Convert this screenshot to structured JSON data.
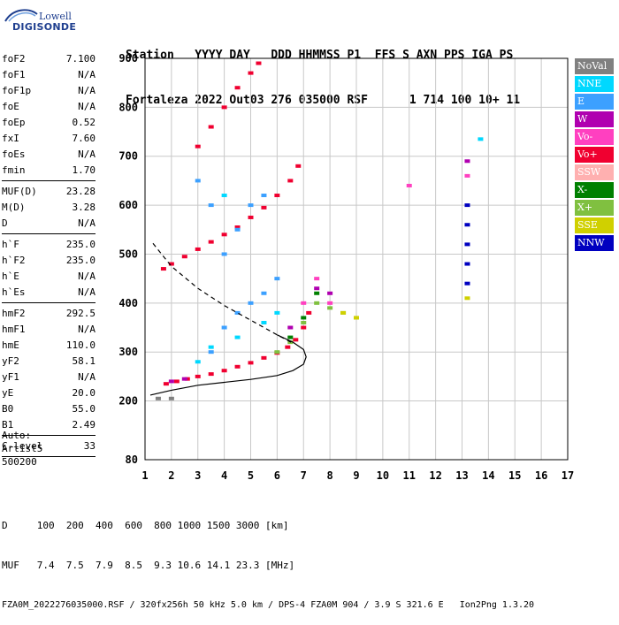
{
  "logo": {
    "brand": "Lowell",
    "product": "DIGISONDE"
  },
  "header": {
    "line1": "Station   YYYY DAY   DDD HHMMSS P1  FFS S AXN PPS IGA PS",
    "line2": "Fortaleza 2022 Out03 276 035000 RSF      1 714 100 10+ 11"
  },
  "params": {
    "group1": [
      {
        "key": "foF2",
        "value": "7.100"
      },
      {
        "key": "foF1",
        "value": "N/A"
      },
      {
        "key": "foF1p",
        "value": "N/A"
      },
      {
        "key": "foE",
        "value": "N/A"
      },
      {
        "key": "foEp",
        "value": "0.52"
      },
      {
        "key": "fxI",
        "value": "7.60"
      },
      {
        "key": "foEs",
        "value": "N/A"
      },
      {
        "key": "fmin",
        "value": "1.70"
      }
    ],
    "group2": [
      {
        "key": "MUF(D)",
        "value": "23.28"
      },
      {
        "key": "M(D)",
        "value": "3.28"
      },
      {
        "key": "D",
        "value": "N/A"
      }
    ],
    "group3": [
      {
        "key": "h`F",
        "value": "235.0"
      },
      {
        "key": "h`F2",
        "value": "235.0"
      },
      {
        "key": "h`E",
        "value": "N/A"
      },
      {
        "key": "h`Es",
        "value": "N/A"
      }
    ],
    "group4": [
      {
        "key": "hmF2",
        "value": "292.5"
      },
      {
        "key": "hmF1",
        "value": "N/A"
      },
      {
        "key": "hmE",
        "value": "110.0"
      },
      {
        "key": "yF2",
        "value": "58.1"
      },
      {
        "key": "yF1",
        "value": "N/A"
      },
      {
        "key": "yE",
        "value": "20.0"
      },
      {
        "key": "B0",
        "value": "55.0"
      },
      {
        "key": "B1",
        "value": "2.49"
      }
    ],
    "group5": [
      {
        "key": "C-level",
        "value": "33"
      }
    ]
  },
  "auto": {
    "line1": "Auto:",
    "line2": "Artist5",
    "line3": "500200"
  },
  "legend": [
    {
      "label": "NoVal",
      "color": "#808080"
    },
    {
      "label": "NNE",
      "color": "#00d8ff"
    },
    {
      "label": "E",
      "color": "#3ca0ff"
    },
    {
      "label": "W",
      "color": "#b000b0"
    },
    {
      "label": "Vo-",
      "color": "#ff40c0"
    },
    {
      "label": "Vo+",
      "color": "#f00030"
    },
    {
      "label": "SSW",
      "color": "#ffb0b0"
    },
    {
      "label": "X-",
      "color": "#008000"
    },
    {
      "label": "X+",
      "color": "#80c040"
    },
    {
      "label": "SSE",
      "color": "#d0d000"
    },
    {
      "label": "NNW",
      "color": "#0000c0"
    }
  ],
  "footer": {
    "line1": "D     100  200  400  600  800 1000 1500 3000 [km]",
    "line2": "MUF   7.4  7.5  7.9  8.5  9.3 10.6 14.1 23.3 [MHz]",
    "line3": "FZA0M_2022276035000.RSF / 320fx256h 50 kHz 5.0 km / DPS-4 FZA0M 904 / 3.9 S 321.6 E   Ion2Png 1.3.20"
  },
  "chart_data": {
    "type": "scatter",
    "title": "",
    "xlabel": "",
    "ylabel": "",
    "xlim": [
      1,
      17
    ],
    "ylim": [
      80,
      900
    ],
    "xticks": [
      1,
      2,
      3,
      4,
      5,
      6,
      7,
      8,
      9,
      10,
      11,
      12,
      13,
      14,
      15,
      16,
      17
    ],
    "yticks": [
      80,
      200,
      300,
      400,
      500,
      600,
      700,
      800,
      900
    ],
    "series": [
      {
        "name": "Vo+",
        "color": "#f00030",
        "points": [
          [
            1.8,
            235
          ],
          [
            2.2,
            240
          ],
          [
            2.6,
            245
          ],
          [
            3.0,
            250
          ],
          [
            3.5,
            255
          ],
          [
            4.0,
            262
          ],
          [
            4.5,
            270
          ],
          [
            5.0,
            278
          ],
          [
            5.5,
            288
          ],
          [
            6.0,
            298
          ],
          [
            6.4,
            310
          ],
          [
            6.7,
            325
          ],
          [
            7.0,
            350
          ],
          [
            7.2,
            380
          ]
        ]
      },
      {
        "name": "Vo+",
        "color": "#f00030",
        "points": [
          [
            1.7,
            470
          ],
          [
            2.0,
            480
          ],
          [
            2.5,
            495
          ],
          [
            3.0,
            510
          ],
          [
            3.5,
            525
          ],
          [
            4.0,
            540
          ],
          [
            4.5,
            555
          ],
          [
            5.0,
            575
          ],
          [
            5.5,
            595
          ],
          [
            6.0,
            620
          ],
          [
            6.5,
            650
          ],
          [
            6.8,
            680
          ]
        ]
      },
      {
        "name": "Vo+",
        "color": "#f00030",
        "points": [
          [
            3.0,
            720
          ],
          [
            3.5,
            760
          ],
          [
            4.0,
            800
          ],
          [
            4.5,
            840
          ],
          [
            5.0,
            870
          ],
          [
            5.3,
            890
          ]
        ]
      },
      {
        "name": "X+",
        "color": "#80c040",
        "points": [
          [
            6.0,
            300
          ],
          [
            6.5,
            320
          ],
          [
            7.0,
            360
          ],
          [
            7.5,
            400
          ],
          [
            8.0,
            390
          ],
          [
            8.5,
            380
          ],
          [
            9.0,
            370
          ]
        ]
      },
      {
        "name": "E",
        "color": "#3ca0ff",
        "points": [
          [
            3.5,
            300
          ],
          [
            4.0,
            350
          ],
          [
            4.5,
            380
          ],
          [
            5.0,
            400
          ],
          [
            5.5,
            420
          ],
          [
            6.0,
            450
          ],
          [
            4.0,
            500
          ],
          [
            4.5,
            550
          ],
          [
            5.0,
            600
          ],
          [
            5.5,
            620
          ],
          [
            3.0,
            650
          ],
          [
            3.5,
            600
          ]
        ]
      },
      {
        "name": "NNE",
        "color": "#00d8ff",
        "points": [
          [
            3.0,
            280
          ],
          [
            3.5,
            310
          ],
          [
            4.5,
            330
          ],
          [
            5.5,
            360
          ],
          [
            6.0,
            380
          ],
          [
            4.0,
            620
          ],
          [
            13.7,
            735
          ]
        ]
      },
      {
        "name": "NNW",
        "color": "#0000c0",
        "points": [
          [
            13.2,
            600
          ],
          [
            13.2,
            560
          ],
          [
            13.2,
            520
          ],
          [
            13.2,
            480
          ],
          [
            13.2,
            440
          ]
        ]
      },
      {
        "name": "W",
        "color": "#b000b0",
        "points": [
          [
            2.0,
            240
          ],
          [
            2.5,
            245
          ],
          [
            6.5,
            350
          ],
          [
            7.5,
            430
          ],
          [
            8.0,
            420
          ],
          [
            13.2,
            690
          ]
        ]
      },
      {
        "name": "Vo-",
        "color": "#ff40c0",
        "points": [
          [
            7.0,
            400
          ],
          [
            7.5,
            450
          ],
          [
            8.0,
            400
          ],
          [
            11.0,
            640
          ],
          [
            13.2,
            660
          ]
        ]
      },
      {
        "name": "X-",
        "color": "#008000",
        "points": [
          [
            6.5,
            330
          ],
          [
            7.0,
            370
          ],
          [
            7.5,
            420
          ]
        ]
      },
      {
        "name": "SSE",
        "color": "#d0d000",
        "points": [
          [
            8.5,
            380
          ],
          [
            9.0,
            370
          ],
          [
            13.2,
            410
          ]
        ]
      },
      {
        "name": "NoVal",
        "color": "#808080",
        "points": [
          [
            1.5,
            205
          ],
          [
            2.0,
            205
          ]
        ]
      }
    ],
    "profile_solid": [
      [
        1.2,
        212
      ],
      [
        2,
        222
      ],
      [
        3,
        232
      ],
      [
        4,
        238
      ],
      [
        5,
        244
      ],
      [
        6,
        252
      ],
      [
        6.6,
        262
      ],
      [
        7.0,
        275
      ],
      [
        7.1,
        290
      ],
      [
        7.0,
        305
      ],
      [
        6.6,
        320
      ],
      [
        6.0,
        335
      ]
    ],
    "profile_dashed": [
      [
        1.3,
        522
      ],
      [
        2,
        475
      ],
      [
        3,
        430
      ],
      [
        4,
        395
      ],
      [
        5,
        365
      ],
      [
        6,
        335
      ],
      [
        6.6,
        318
      ]
    ]
  }
}
